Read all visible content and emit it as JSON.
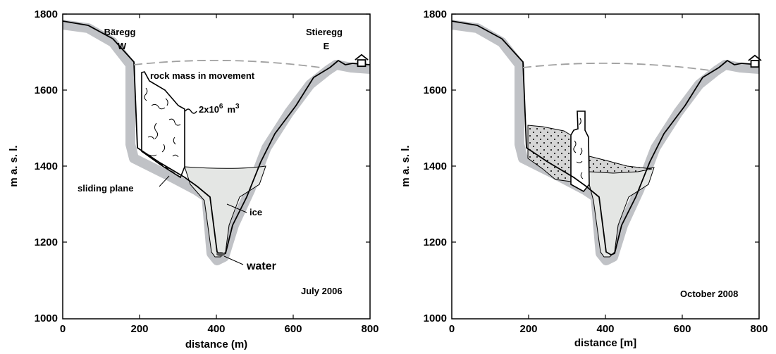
{
  "colors": {
    "bedrock": "#c0c2c6",
    "ice": "#e4e6e4",
    "debris": "#d6d6d6",
    "ridge": "#000000",
    "dashed_line": "#a0a0a0"
  },
  "panel1": {
    "y_ticks": [
      "1800",
      "1600",
      "1400",
      "1200",
      "1000"
    ],
    "x_ticks": [
      "0",
      "200",
      "400",
      "600",
      "800"
    ],
    "ylabel": "m a. s. l.",
    "xlabel": "distance  (m)",
    "label_west": "Bäregg",
    "label_w": "W",
    "label_east": "Stieregg",
    "label_e": "E",
    "rock_mass": "rock mass  in  movement",
    "volume_prefix": "2x10",
    "volume_exp": "6",
    "volume_unit": "m",
    "volume_unit_exp": "3",
    "sliding_plane": "sliding  plane",
    "ice": "ice",
    "water": "water",
    "date": "July  2006"
  },
  "panel2": {
    "y_ticks": [
      "1800",
      "1600",
      "1400",
      "1200",
      "1000"
    ],
    "x_ticks": [
      "0",
      "200",
      "400",
      "600",
      "800"
    ],
    "ylabel": "m a. s. l.",
    "xlabel": "distance [m]",
    "date": "October  2008"
  }
}
